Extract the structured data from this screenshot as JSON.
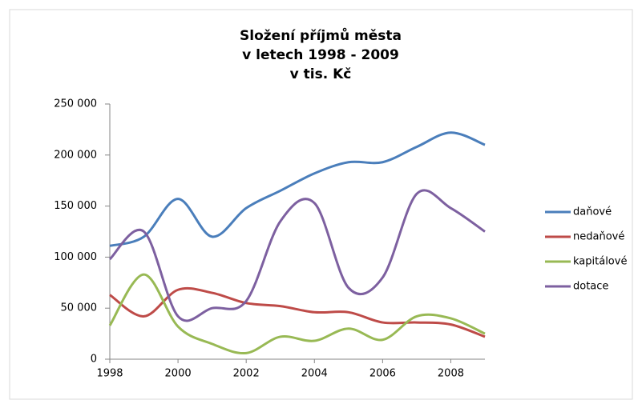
{
  "chart_data": {
    "type": "line",
    "title": [
      "Složení příjmů města",
      "v letech 1998 - 2009",
      "v tis. Kč"
    ],
    "x": [
      1998,
      1999,
      2000,
      2001,
      2002,
      2003,
      2004,
      2005,
      2006,
      2007,
      2008,
      2009
    ],
    "xlim": [
      1998,
      2009
    ],
    "xticks": [
      1998,
      2000,
      2002,
      2004,
      2006,
      2008
    ],
    "ylim": [
      0,
      250000
    ],
    "yticks": [
      0,
      {
        "value": 50000,
        "label": "50 000"
      },
      {
        "value": 100000,
        "label": "100 000"
      },
      {
        "value": 150000,
        "label": "150 000"
      },
      {
        "value": 200000,
        "label": "200 000"
      },
      {
        "value": 250000,
        "label": "250 000"
      }
    ],
    "grid": false,
    "legend": "right",
    "series": [
      {
        "name": "daňové",
        "color": "#4a7ebb",
        "values": [
          111000,
          120000,
          157000,
          120000,
          148000,
          165000,
          182000,
          193000,
          193000,
          208000,
          222000,
          210000
        ]
      },
      {
        "name": "nedaňové",
        "color": "#be4b48",
        "values": [
          63000,
          42000,
          68000,
          65000,
          55000,
          52000,
          46000,
          46000,
          36000,
          36000,
          34000,
          22000
        ]
      },
      {
        "name": "kapitálové",
        "color": "#98b954",
        "values": [
          33000,
          83000,
          32000,
          15000,
          6000,
          22000,
          18000,
          30000,
          19000,
          42000,
          40000,
          25000
        ]
      },
      {
        "name": "dotace",
        "color": "#7d60a0",
        "values": [
          98000,
          125000,
          42000,
          50000,
          57000,
          135000,
          153000,
          70000,
          80000,
          162000,
          148000,
          125000
        ]
      }
    ]
  }
}
